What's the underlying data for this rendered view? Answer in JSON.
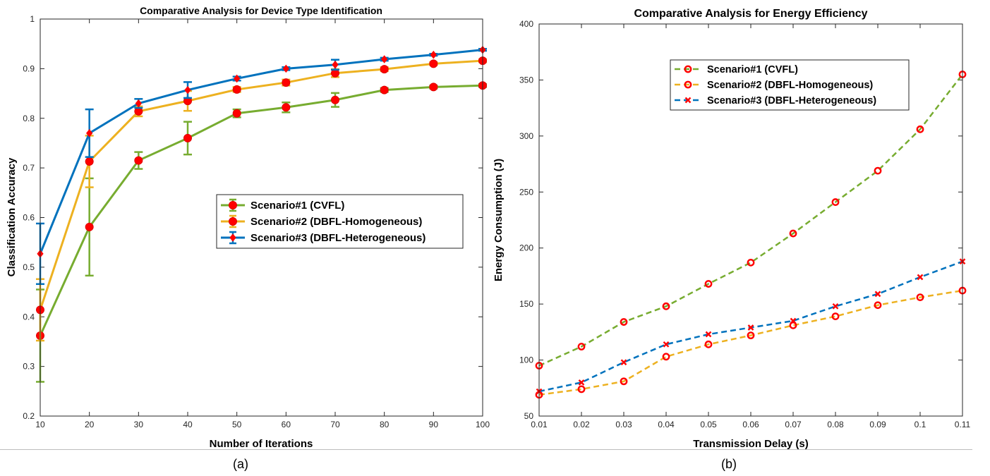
{
  "figure": {
    "panel_labels": [
      "(a)",
      "(b)"
    ]
  },
  "chart_data": [
    {
      "type": "line",
      "title": "Comparative Analysis for Device Type Identification",
      "xlabel": "Number of Iterations",
      "ylabel": "Classification Accuracy",
      "xlim": [
        10,
        100
      ],
      "ylim": [
        0.2,
        1
      ],
      "xticks": [
        10,
        20,
        30,
        40,
        50,
        60,
        70,
        80,
        90,
        100
      ],
      "yticks": [
        0.2,
        0.3,
        0.4,
        0.5,
        0.6,
        0.7,
        0.8,
        0.9,
        1
      ],
      "ytick_labels": [
        "0.2",
        "0.3",
        "0.4",
        "0.5",
        "0.6",
        "0.7",
        "0.8",
        "0.9",
        "1"
      ],
      "grid": false,
      "legend_position": "center-right",
      "error_bars": true,
      "x": [
        10,
        20,
        30,
        40,
        50,
        60,
        70,
        80,
        90,
        100
      ],
      "series": [
        {
          "name": "Scenario#1 (CVFL)",
          "color": "#77ac30",
          "marker": "dot",
          "values": [
            0.362,
            0.581,
            0.715,
            0.76,
            0.81,
            0.822,
            0.837,
            0.857,
            0.863,
            0.866
          ],
          "errors": [
            0.093,
            0.098,
            0.017,
            0.033,
            0.008,
            0.01,
            0.014,
            0.004,
            0.003,
            0.003
          ]
        },
        {
          "name": "Scenario#2 (DBFL-Homogeneous)",
          "color": "#edb120",
          "marker": "dot",
          "values": [
            0.414,
            0.713,
            0.814,
            0.835,
            0.858,
            0.872,
            0.891,
            0.899,
            0.91,
            0.916
          ],
          "errors": [
            0.062,
            0.052,
            0.01,
            0.02,
            0.005,
            0.006,
            0.008,
            0.004,
            0.003,
            0.003
          ]
        },
        {
          "name": "Scenario#3 (DBFL-Heterogeneous)",
          "color": "#0072bd",
          "marker": "diamond",
          "values": [
            0.527,
            0.77,
            0.83,
            0.857,
            0.88,
            0.9,
            0.908,
            0.919,
            0.928,
            0.938
          ],
          "errors": [
            0.061,
            0.048,
            0.009,
            0.016,
            0.004,
            0.003,
            0.01,
            0.003,
            0.002,
            0.002
          ]
        }
      ]
    },
    {
      "type": "line",
      "title": "Comparative Analysis for Energy Efficiency",
      "xlabel": "Transmission Delay (s)",
      "ylabel": "Energy Consumption (J)",
      "xlim": [
        0.01,
        0.11
      ],
      "ylim": [
        50,
        400
      ],
      "xticks": [
        0.01,
        0.02,
        0.03,
        0.04,
        0.05,
        0.06,
        0.07,
        0.08,
        0.09,
        0.1,
        0.11
      ],
      "xtick_labels": [
        "0.01",
        "0.02",
        "0.03",
        "0.04",
        "0.05",
        "0.06",
        "0.07",
        "0.08",
        "0.09",
        "0.1",
        "0.11"
      ],
      "yticks": [
        50,
        100,
        150,
        200,
        250,
        300,
        350,
        400
      ],
      "ytick_labels": [
        "50",
        "100",
        "150",
        "200",
        "250",
        "300",
        "350",
        "400"
      ],
      "grid": false,
      "legend_position": "top-center",
      "x": [
        0.01,
        0.02,
        0.03,
        0.04,
        0.05,
        0.06,
        0.07,
        0.08,
        0.09,
        0.1,
        0.11
      ],
      "series": [
        {
          "name": "Scenario#1 (CVFL)",
          "color": "#77ac30",
          "marker": "ring",
          "values": [
            95,
            112,
            134,
            148,
            168,
            187,
            213,
            241,
            269,
            306,
            355
          ]
        },
        {
          "name": "Scenario#2 (DBFL-Homogeneous)",
          "color": "#edb120",
          "marker": "ring",
          "values": [
            69,
            74,
            81,
            103,
            114,
            122,
            131,
            139,
            149,
            156,
            162
          ]
        },
        {
          "name": "Scenario#3 (DBFL-Heterogeneous)",
          "color": "#0072bd",
          "marker": "cross",
          "values": [
            72,
            80,
            98,
            114,
            123,
            129,
            135,
            148,
            159,
            174,
            188
          ]
        }
      ]
    }
  ]
}
